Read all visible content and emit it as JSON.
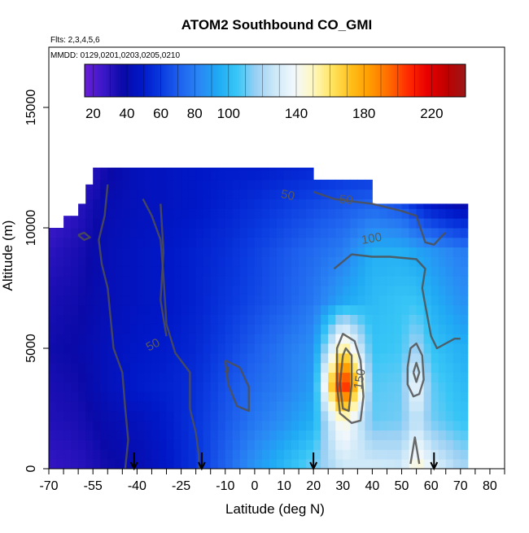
{
  "chart_data": {
    "type": "heatmap",
    "title": "ATOM2 Southbound CO_GMI",
    "subtitle_flights": "Flts: 2,3,4,5,6",
    "subtitle_dates": "MMDD: 0129,0201,0203,0205,0210",
    "xlabel": "Latitude (deg N)",
    "ylabel": "Altitude (m)",
    "xlim": [
      -70,
      85
    ],
    "ylim": [
      0,
      17500
    ],
    "x_tick_labels": [
      -70,
      -55,
      -40,
      -25,
      -10,
      0,
      10,
      20,
      30,
      40,
      50,
      60,
      70,
      80
    ],
    "y_tick_labels": [
      0,
      5000,
      10000,
      15000
    ],
    "colorbar": {
      "range": [
        15,
        240
      ],
      "tick_labels": [
        20,
        40,
        60,
        80,
        100,
        140,
        180,
        220
      ],
      "colors": [
        "#6a1ed8",
        "#3a18c8",
        "#0a0aa8",
        "#0018c8",
        "#0a3ae0",
        "#1e62ee",
        "#2a86f4",
        "#20aaf4",
        "#38c6f6",
        "#9ad0f4",
        "#cde8f8",
        "#f2f8fc",
        "#fff8c0",
        "#ffe460",
        "#ffbe18",
        "#ff9a00",
        "#ff6a00",
        "#ff2a00",
        "#e80000",
        "#c00000",
        "#9a1818"
      ]
    },
    "grid": false,
    "contour_levels": [
      50,
      100,
      150
    ],
    "contour_labels": [
      "50",
      "50",
      "50",
      "100",
      "150"
    ],
    "profile_latitudes": [
      -41,
      -18,
      20,
      61
    ],
    "field_rows": [
      {
        "alt": 0,
        "values": [
          [
            -70,
            28
          ],
          [
            -60,
            30
          ],
          [
            -50,
            36
          ],
          [
            -40,
            40
          ],
          [
            -30,
            48
          ],
          [
            -20,
            58
          ],
          [
            -10,
            72
          ],
          [
            0,
            88
          ],
          [
            10,
            100
          ],
          [
            20,
            112
          ],
          [
            30,
            126
          ],
          [
            40,
            130
          ],
          [
            50,
            128
          ],
          [
            55,
            150
          ],
          [
            60,
            135
          ],
          [
            70,
            120
          ]
        ]
      },
      {
        "alt": 2000,
        "values": [
          [
            -70,
            32
          ],
          [
            -60,
            34
          ],
          [
            -50,
            40
          ],
          [
            -40,
            44
          ],
          [
            -30,
            50
          ],
          [
            -20,
            58
          ],
          [
            -10,
            68
          ],
          [
            0,
            78
          ],
          [
            10,
            86
          ],
          [
            20,
            96
          ],
          [
            30,
            148
          ],
          [
            40,
            110
          ],
          [
            50,
            112
          ],
          [
            55,
            126
          ],
          [
            60,
            112
          ],
          [
            70,
            104
          ]
        ]
      },
      {
        "alt": 3500,
        "values": [
          [
            -70,
            34
          ],
          [
            -60,
            36
          ],
          [
            -50,
            44
          ],
          [
            -40,
            50
          ],
          [
            -30,
            52
          ],
          [
            -20,
            56
          ],
          [
            -10,
            66
          ],
          [
            0,
            74
          ],
          [
            10,
            80
          ],
          [
            20,
            90
          ],
          [
            30,
            222
          ],
          [
            40,
            108
          ],
          [
            50,
            110
          ],
          [
            55,
            142
          ],
          [
            60,
            110
          ],
          [
            70,
            100
          ]
        ]
      },
      {
        "alt": 5000,
        "values": [
          [
            -70,
            36
          ],
          [
            -60,
            38
          ],
          [
            -50,
            44
          ],
          [
            -40,
            48
          ],
          [
            -30,
            50
          ],
          [
            -20,
            54
          ],
          [
            -10,
            62
          ],
          [
            0,
            70
          ],
          [
            10,
            78
          ],
          [
            20,
            86
          ],
          [
            30,
            160
          ],
          [
            40,
            104
          ],
          [
            50,
            106
          ],
          [
            55,
            120
          ],
          [
            60,
            104
          ],
          [
            70,
            96
          ]
        ]
      },
      {
        "alt": 7000,
        "values": [
          [
            -70,
            34
          ],
          [
            -60,
            36
          ],
          [
            -50,
            42
          ],
          [
            -40,
            46
          ],
          [
            -30,
            48
          ],
          [
            -20,
            52
          ],
          [
            -10,
            58
          ],
          [
            0,
            64
          ],
          [
            10,
            70
          ],
          [
            20,
            78
          ],
          [
            30,
            92
          ],
          [
            40,
            100
          ],
          [
            50,
            104
          ],
          [
            55,
            104
          ],
          [
            60,
            96
          ],
          [
            70,
            86
          ]
        ]
      },
      {
        "alt": 9000,
        "values": [
          [
            -70,
            30
          ],
          [
            -60,
            34
          ],
          [
            -50,
            42
          ],
          [
            -40,
            46
          ],
          [
            -30,
            48
          ],
          [
            -20,
            52
          ],
          [
            -10,
            56
          ],
          [
            0,
            62
          ],
          [
            10,
            68
          ],
          [
            20,
            74
          ],
          [
            30,
            80
          ],
          [
            40,
            96
          ],
          [
            50,
            96
          ],
          [
            55,
            92
          ],
          [
            60,
            88
          ],
          [
            70,
            80
          ]
        ]
      },
      {
        "alt": 11000,
        "values": [
          [
            -70,
            22
          ],
          [
            -60,
            30
          ],
          [
            -50,
            40
          ],
          [
            -40,
            44
          ],
          [
            -30,
            46
          ],
          [
            -20,
            48
          ],
          [
            -10,
            52
          ],
          [
            0,
            56
          ],
          [
            10,
            60
          ],
          [
            20,
            64
          ],
          [
            30,
            68
          ],
          [
            40,
            72
          ],
          [
            50,
            66
          ],
          [
            55,
            56
          ],
          [
            60,
            48
          ],
          [
            70,
            40
          ]
        ]
      },
      {
        "alt": 12500,
        "values": [
          [
            -70,
            18
          ],
          [
            -60,
            26
          ],
          [
            -50,
            36
          ],
          [
            -40,
            44
          ],
          [
            -30,
            46
          ],
          [
            -20,
            48
          ],
          [
            -10,
            50
          ],
          [
            0,
            50
          ],
          [
            10,
            52
          ],
          [
            20,
            54
          ],
          [
            30,
            56
          ],
          [
            40,
            56
          ],
          [
            50,
            50
          ],
          [
            55,
            44
          ],
          [
            60,
            38
          ],
          [
            70,
            30
          ]
        ]
      }
    ]
  }
}
